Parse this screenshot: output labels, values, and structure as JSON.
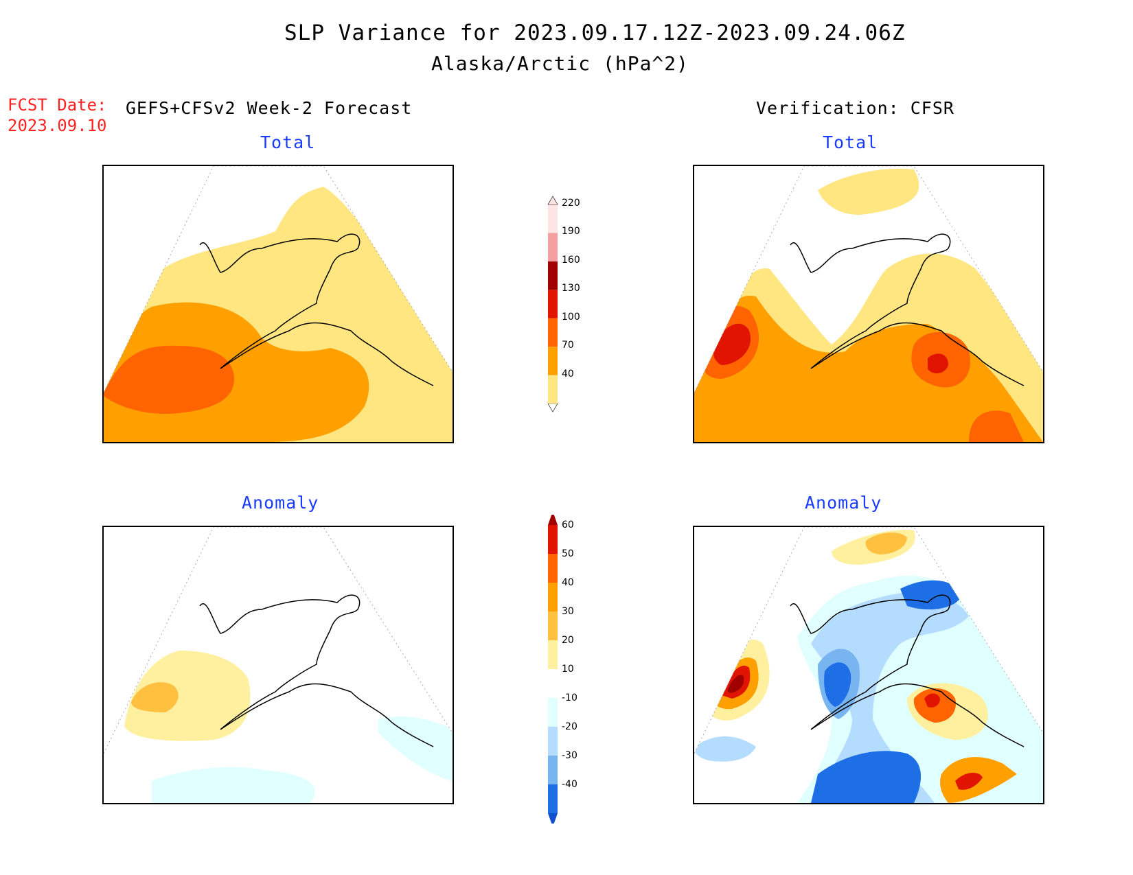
{
  "figure": {
    "title": "SLP Variance for 2023.09.17.12Z-2023.09.24.06Z",
    "subtitle": "Alaska/Arctic (hPa^2)",
    "fcst_label": "FCST Date:",
    "fcst_date": "2023.09.10",
    "left_header": "GEFS+CFSv2 Week-2 Forecast",
    "right_header": "Verification: CFSR"
  },
  "panels": {
    "forecast_total": {
      "title": "Total"
    },
    "verif_total": {
      "title": "Total"
    },
    "forecast_anomaly": {
      "title": "Anomaly"
    },
    "verif_anomaly": {
      "title": "Anomaly"
    }
  },
  "colorbars": {
    "total": {
      "levels": [
        "40",
        "70",
        "100",
        "130",
        "160",
        "190",
        "220"
      ],
      "colors": [
        "#ffe680",
        "#ffa000",
        "#ff6400",
        "#e01400",
        "#a00000",
        "#f4a0a0",
        "#ffe4e4"
      ]
    },
    "anomaly": {
      "levels": [
        "60",
        "50",
        "40",
        "30",
        "20",
        "10",
        "-10",
        "-20",
        "-30",
        "-40"
      ],
      "colors": [
        "#a00000",
        "#e01400",
        "#ff6400",
        "#ffa000",
        "#ffc040",
        "#fff0a0",
        "#ffffff",
        "#e0ffff",
        "#b4dcff",
        "#78b4f0",
        "#1e6ee6",
        "#1050d0"
      ]
    }
  }
}
